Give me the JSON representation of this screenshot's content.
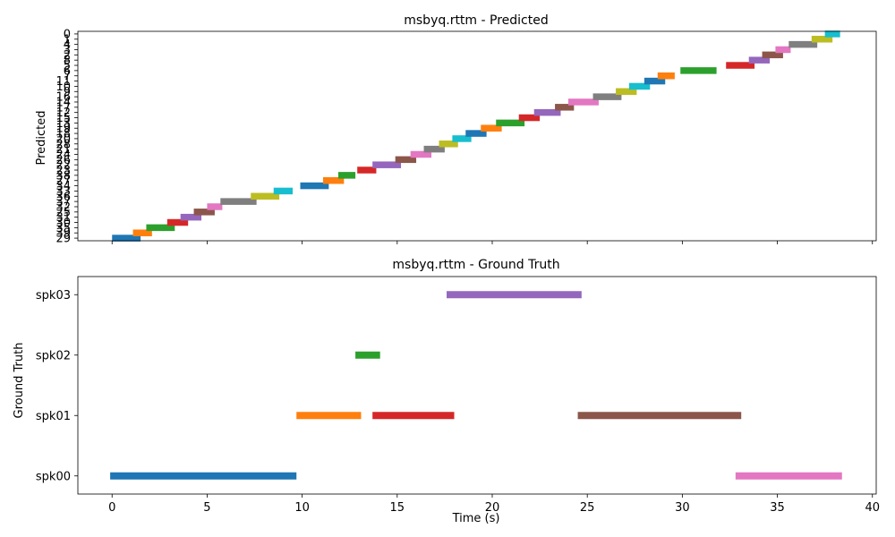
{
  "chart_data": [
    {
      "type": "timeline",
      "title": "msbyq.rttm - Predicted",
      "ylabel": "Predicted",
      "xlabel": "",
      "xlim": [
        -1.8,
        40.2
      ],
      "xticks": [
        0,
        5,
        10,
        15,
        20,
        25,
        30,
        35,
        40
      ],
      "show_xtick_labels": false,
      "ylim": [
        -0.5,
        39.5
      ],
      "row_labels": [
        "29",
        "39",
        "35",
        "30",
        "31",
        "25",
        "32",
        "37",
        "36",
        "33",
        "34",
        "27",
        "38",
        "23",
        "22",
        "26",
        "24",
        "21",
        "28",
        "20",
        "18",
        "19",
        "13",
        "15",
        "12",
        "17",
        "14",
        "16",
        "9",
        "10",
        "11",
        "7",
        "6",
        "5",
        "8",
        "2",
        "3",
        "4",
        "1",
        "0"
      ],
      "segments": [
        {
          "row": 0,
          "start": 0.0,
          "end": 1.5,
          "color": "#1f77b4"
        },
        {
          "row": 1,
          "start": 1.1,
          "end": 2.1,
          "color": "#ff7f0e"
        },
        {
          "row": 2,
          "start": 1.8,
          "end": 3.3,
          "color": "#2ca02c"
        },
        {
          "row": 3,
          "start": 2.9,
          "end": 4.0,
          "color": "#d62728"
        },
        {
          "row": 4,
          "start": 3.6,
          "end": 4.7,
          "color": "#9467bd"
        },
        {
          "row": 5,
          "start": 4.3,
          "end": 5.4,
          "color": "#8c564b"
        },
        {
          "row": 6,
          "start": 5.0,
          "end": 5.8,
          "color": "#e377c2"
        },
        {
          "row": 7,
          "start": 5.7,
          "end": 7.6,
          "color": "#7f7f7f"
        },
        {
          "row": 8,
          "start": 7.3,
          "end": 8.8,
          "color": "#bcbd22"
        },
        {
          "row": 9,
          "start": 8.5,
          "end": 9.5,
          "color": "#17becf"
        },
        {
          "row": 10,
          "start": 9.9,
          "end": 11.4,
          "color": "#1f77b4"
        },
        {
          "row": 11,
          "start": 11.1,
          "end": 12.2,
          "color": "#ff7f0e"
        },
        {
          "row": 12,
          "start": 11.9,
          "end": 12.8,
          "color": "#2ca02c"
        },
        {
          "row": 13,
          "start": 12.9,
          "end": 13.9,
          "color": "#d62728"
        },
        {
          "row": 14,
          "start": 13.7,
          "end": 15.2,
          "color": "#9467bd"
        },
        {
          "row": 15,
          "start": 14.9,
          "end": 16.0,
          "color": "#8c564b"
        },
        {
          "row": 16,
          "start": 15.7,
          "end": 16.8,
          "color": "#e377c2"
        },
        {
          "row": 17,
          "start": 16.4,
          "end": 17.5,
          "color": "#7f7f7f"
        },
        {
          "row": 18,
          "start": 17.2,
          "end": 18.2,
          "color": "#bcbd22"
        },
        {
          "row": 19,
          "start": 17.9,
          "end": 18.9,
          "color": "#17becf"
        },
        {
          "row": 20,
          "start": 18.6,
          "end": 19.7,
          "color": "#1f77b4"
        },
        {
          "row": 21,
          "start": 19.4,
          "end": 20.5,
          "color": "#ff7f0e"
        },
        {
          "row": 22,
          "start": 20.2,
          "end": 21.7,
          "color": "#2ca02c"
        },
        {
          "row": 23,
          "start": 21.4,
          "end": 22.5,
          "color": "#d62728"
        },
        {
          "row": 24,
          "start": 22.2,
          "end": 23.6,
          "color": "#9467bd"
        },
        {
          "row": 25,
          "start": 23.3,
          "end": 24.3,
          "color": "#8c564b"
        },
        {
          "row": 26,
          "start": 24.0,
          "end": 25.6,
          "color": "#e377c2"
        },
        {
          "row": 27,
          "start": 25.3,
          "end": 26.8,
          "color": "#7f7f7f"
        },
        {
          "row": 28,
          "start": 26.5,
          "end": 27.6,
          "color": "#bcbd22"
        },
        {
          "row": 29,
          "start": 27.2,
          "end": 28.3,
          "color": "#17becf"
        },
        {
          "row": 30,
          "start": 28.0,
          "end": 29.1,
          "color": "#1f77b4"
        },
        {
          "row": 31,
          "start": 28.7,
          "end": 29.6,
          "color": "#ff7f0e"
        },
        {
          "row": 32,
          "start": 29.9,
          "end": 31.8,
          "color": "#2ca02c"
        },
        {
          "row": 33,
          "start": 32.3,
          "end": 33.8,
          "color": "#d62728"
        },
        {
          "row": 34,
          "start": 33.5,
          "end": 34.6,
          "color": "#9467bd"
        },
        {
          "row": 35,
          "start": 34.2,
          "end": 35.3,
          "color": "#8c564b"
        },
        {
          "row": 36,
          "start": 34.9,
          "end": 35.7,
          "color": "#e377c2"
        },
        {
          "row": 37,
          "start": 35.6,
          "end": 37.1,
          "color": "#7f7f7f"
        },
        {
          "row": 38,
          "start": 36.8,
          "end": 37.9,
          "color": "#bcbd22"
        },
        {
          "row": 39,
          "start": 37.5,
          "end": 38.3,
          "color": "#17becf"
        }
      ]
    },
    {
      "type": "timeline",
      "title": "msbyq.rttm - Ground Truth",
      "ylabel": "Ground Truth",
      "xlabel": "Time (s)",
      "xlim": [
        -1.8,
        40.2
      ],
      "xticks": [
        0,
        5,
        10,
        15,
        20,
        25,
        30,
        35,
        40
      ],
      "show_xtick_labels": true,
      "ylim": [
        -0.3,
        3.3
      ],
      "row_labels": [
        "spk00",
        "spk01",
        "spk02",
        "spk03"
      ],
      "segments": [
        {
          "row": 0,
          "start": -0.1,
          "end": 9.7,
          "color": "#1f77b4"
        },
        {
          "row": 1,
          "start": 9.7,
          "end": 13.1,
          "color": "#ff7f0e"
        },
        {
          "row": 2,
          "start": 12.8,
          "end": 14.1,
          "color": "#2ca02c"
        },
        {
          "row": 1,
          "start": 13.7,
          "end": 18.0,
          "color": "#d62728"
        },
        {
          "row": 3,
          "start": 17.6,
          "end": 24.7,
          "color": "#9467bd"
        },
        {
          "row": 1,
          "start": 24.5,
          "end": 33.1,
          "color": "#8c564b"
        },
        {
          "row": 0,
          "start": 32.8,
          "end": 38.4,
          "color": "#e377c2"
        }
      ]
    }
  ]
}
